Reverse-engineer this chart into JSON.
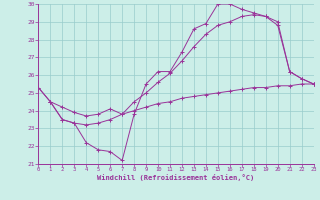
{
  "xlabel": "Windchill (Refroidissement éolien,°C)",
  "bg_color": "#cceee8",
  "line_color": "#993399",
  "grid_color": "#99cccc",
  "xlim": [
    0,
    23
  ],
  "ylim": [
    21,
    30
  ],
  "xticks": [
    0,
    1,
    2,
    3,
    4,
    5,
    6,
    7,
    8,
    9,
    10,
    11,
    12,
    13,
    14,
    15,
    16,
    17,
    18,
    19,
    20,
    21,
    22,
    23
  ],
  "yticks": [
    21,
    22,
    23,
    24,
    25,
    26,
    27,
    28,
    29,
    30
  ],
  "series": [
    {
      "x": [
        0,
        1,
        2,
        3,
        4,
        5,
        6,
        7,
        8,
        9,
        10,
        11,
        12,
        13,
        14,
        15,
        16,
        17,
        18,
        19,
        20,
        21,
        22,
        23
      ],
      "y": [
        25.3,
        24.5,
        23.5,
        23.3,
        22.2,
        21.8,
        21.7,
        21.2,
        23.8,
        25.5,
        26.2,
        26.2,
        27.3,
        28.6,
        28.9,
        30.0,
        30.0,
        29.7,
        29.5,
        29.3,
        28.8,
        26.2,
        25.8,
        25.5
      ]
    },
    {
      "x": [
        0,
        1,
        2,
        3,
        4,
        5,
        6,
        7,
        8,
        9,
        10,
        11,
        12,
        13,
        14,
        15,
        16,
        17,
        18,
        19,
        20,
        21,
        22,
        23
      ],
      "y": [
        25.3,
        24.5,
        24.2,
        23.9,
        23.7,
        23.8,
        24.1,
        23.8,
        24.5,
        25.0,
        25.6,
        26.1,
        26.8,
        27.6,
        28.3,
        28.8,
        29.0,
        29.3,
        29.4,
        29.3,
        29.0,
        26.2,
        25.8,
        25.5
      ]
    },
    {
      "x": [
        1,
        2,
        3,
        4,
        5,
        6,
        7,
        8,
        9,
        10,
        11,
        12,
        13,
        14,
        15,
        16,
        17,
        18,
        19,
        20,
        21,
        22,
        23
      ],
      "y": [
        24.5,
        23.5,
        23.3,
        23.2,
        23.3,
        23.5,
        23.8,
        24.0,
        24.2,
        24.4,
        24.5,
        24.7,
        24.8,
        24.9,
        25.0,
        25.1,
        25.2,
        25.3,
        25.3,
        25.4,
        25.4,
        25.5,
        25.5
      ]
    }
  ]
}
